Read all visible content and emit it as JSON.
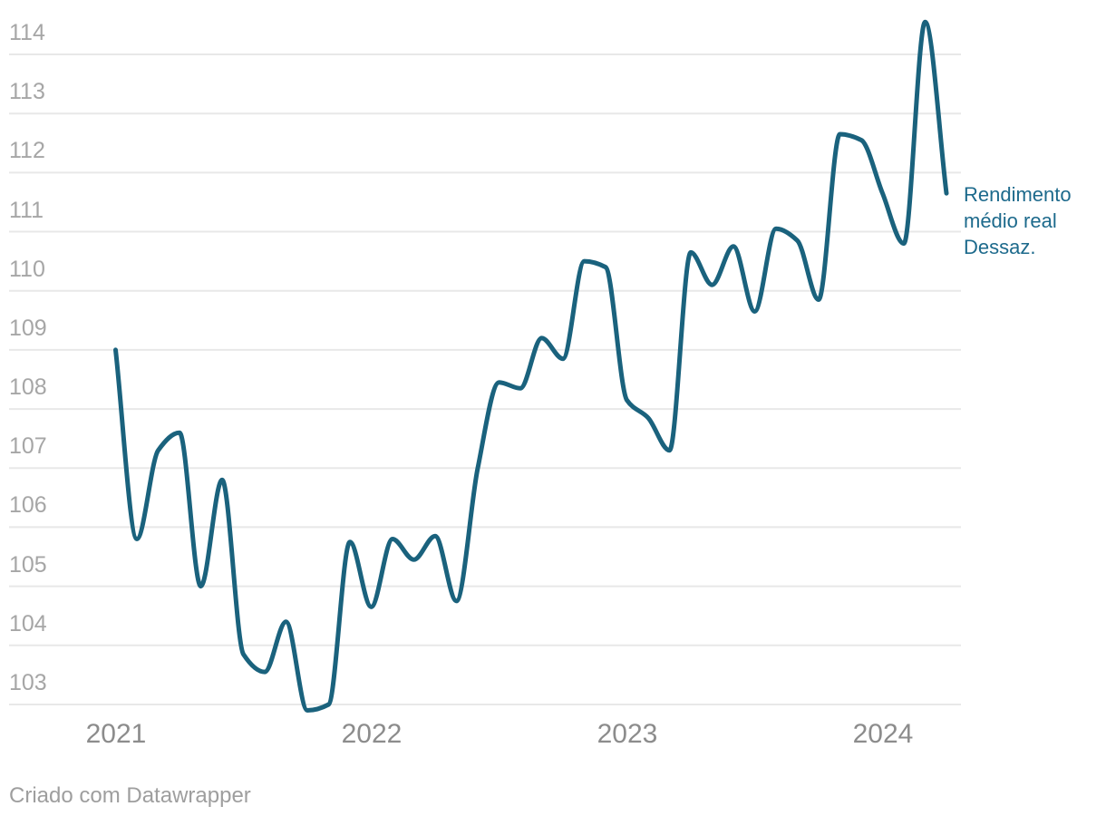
{
  "chart_data": {
    "type": "line",
    "title": "",
    "grid": "horizontal-only",
    "legend_position": "right-of-line-end",
    "ylim": [
      102.6,
      114.9
    ],
    "y_tick_labels": [
      "103",
      "104",
      "105",
      "106",
      "107",
      "108",
      "109",
      "110",
      "111",
      "112",
      "113",
      "114"
    ],
    "y_ticks": [
      103,
      104,
      105,
      106,
      107,
      108,
      109,
      110,
      111,
      112,
      113,
      114
    ],
    "x_tick_labels": [
      "2021",
      "2022",
      "2023",
      "2024"
    ],
    "x_tick_month_index": [
      0,
      12,
      24,
      36
    ],
    "months": [
      "2021-01",
      "2021-02",
      "2021-03",
      "2021-04",
      "2021-05",
      "2021-06",
      "2021-07",
      "2021-08",
      "2021-09",
      "2021-10",
      "2021-11",
      "2021-12",
      "2022-01",
      "2022-02",
      "2022-03",
      "2022-04",
      "2022-05",
      "2022-06",
      "2022-07",
      "2022-08",
      "2022-09",
      "2022-10",
      "2022-11",
      "2022-12",
      "2023-01",
      "2023-02",
      "2023-03",
      "2023-04",
      "2023-05",
      "2023-06",
      "2023-07",
      "2023-08",
      "2023-09",
      "2023-10",
      "2023-11",
      "2023-12",
      "2024-01",
      "2024-02",
      "2024-03",
      "2024-04"
    ],
    "series": [
      {
        "name": "Rendimento médio real Dessaz.",
        "color": "#1a627d",
        "values": [
          109.0,
          105.8,
          107.3,
          107.6,
          105.0,
          106.8,
          103.85,
          103.55,
          104.4,
          102.9,
          103.0,
          105.75,
          104.65,
          105.8,
          105.45,
          105.85,
          104.75,
          107.0,
          108.45,
          108.35,
          109.2,
          108.85,
          110.5,
          110.4,
          108.15,
          107.85,
          107.3,
          110.65,
          110.1,
          110.75,
          109.65,
          111.05,
          110.85,
          109.85,
          112.65,
          112.55,
          111.65,
          110.8,
          114.55,
          111.65
        ]
      }
    ],
    "annotation": {
      "lines": [
        "Rendimento",
        "médio real",
        "Dessaz."
      ],
      "color": "#1d6a8c"
    }
  },
  "colors": {
    "line": "#1a627d",
    "gridline": "#e8e8e8",
    "y_label": "#a6a6a6",
    "x_label": "#8c8c8c",
    "annotation": "#1d6a8c",
    "footer": "#9e9e9e",
    "background": "#ffffff"
  },
  "footer": {
    "text": "Criado com Datawrapper"
  }
}
